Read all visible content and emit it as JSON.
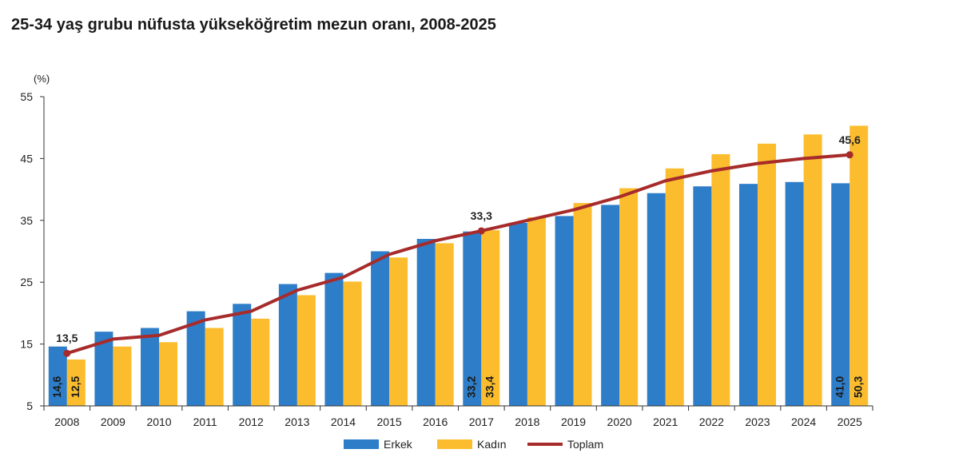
{
  "title": "25-34 yaş grubu nüfusta yükseköğretim mezun oranı, 2008-2025",
  "colors": {
    "erkek": "#2e7dc9",
    "kadin": "#fbbd2e",
    "toplam": "#a72b2b",
    "axis": "#333333"
  },
  "chart_data": {
    "type": "bar",
    "title": "25-34 yaş grubu nüfusta yükseköğretim mezun oranı, 2008-2025",
    "unit_label": "(%)",
    "ylim": [
      5,
      55
    ],
    "yticks": [
      5,
      15,
      25,
      35,
      45,
      55
    ],
    "grid": false,
    "legend_position": "bottom",
    "categories": [
      "2008",
      "2009",
      "2010",
      "2011",
      "2012",
      "2013",
      "2014",
      "2015",
      "2016",
      "2017",
      "2018",
      "2019",
      "2020",
      "2021",
      "2022",
      "2023",
      "2024",
      "2025"
    ],
    "series": [
      {
        "name": "Erkek",
        "type": "bar",
        "values": [
          14.6,
          17.0,
          17.6,
          20.3,
          21.5,
          24.7,
          26.5,
          30.0,
          32.0,
          33.2,
          34.6,
          35.7,
          37.5,
          39.4,
          40.5,
          40.9,
          41.2,
          41.0
        ],
        "labels": {
          "0": "14,6",
          "9": "33,2",
          "17": "41,0"
        }
      },
      {
        "name": "Kadın",
        "type": "bar",
        "values": [
          12.5,
          14.6,
          15.3,
          17.6,
          19.1,
          22.9,
          25.1,
          29.0,
          31.3,
          33.4,
          35.5,
          37.8,
          40.2,
          43.4,
          45.7,
          47.4,
          48.9,
          50.3
        ],
        "labels": {
          "0": "12,5",
          "9": "33,4",
          "17": "50,3"
        }
      },
      {
        "name": "Toplam",
        "type": "line",
        "values": [
          13.5,
          15.8,
          16.4,
          18.9,
          20.3,
          23.7,
          25.8,
          29.5,
          31.7,
          33.3,
          35.0,
          36.7,
          38.8,
          41.4,
          43.0,
          44.2,
          45.0,
          45.6
        ],
        "labels": {
          "0": "13,5",
          "9": "33,3",
          "17": "45,6"
        }
      }
    ]
  }
}
